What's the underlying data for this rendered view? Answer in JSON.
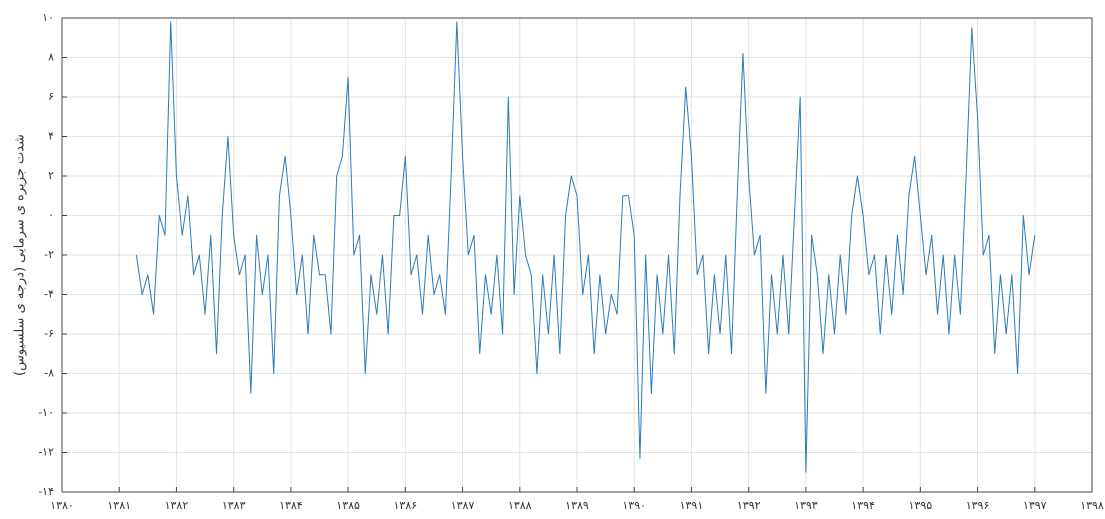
{
  "chart_data": {
    "type": "line",
    "y_label": "شدت جزیره ی سرمایی (درجه ی سلسیوس)",
    "color": "#2b7bba",
    "grid": true,
    "xlim": [
      1380,
      1398
    ],
    "ylim": [
      -14,
      10
    ],
    "xticks": [
      {
        "value": 1380,
        "label": "۱۳۸۰"
      },
      {
        "value": 1381,
        "label": "۱۳۸۱"
      },
      {
        "value": 1382,
        "label": "۱۳۸۲"
      },
      {
        "value": 1383,
        "label": "۱۳۸۳"
      },
      {
        "value": 1384,
        "label": "۱۳۸۴"
      },
      {
        "value": 1385,
        "label": "۱۳۸۵"
      },
      {
        "value": 1386,
        "label": "۱۳۸۶"
      },
      {
        "value": 1387,
        "label": "۱۳۸۷"
      },
      {
        "value": 1388,
        "label": "۱۳۸۸"
      },
      {
        "value": 1389,
        "label": "۱۳۸۹"
      },
      {
        "value": 1390,
        "label": "۱۳۹۰"
      },
      {
        "value": 1391,
        "label": "۱۳۹۱"
      },
      {
        "value": 1392,
        "label": "۱۳۹۲"
      },
      {
        "value": 1393,
        "label": "۱۳۹۳"
      },
      {
        "value": 1394,
        "label": "۱۳۹۴"
      },
      {
        "value": 1395,
        "label": "۱۳۹۵"
      },
      {
        "value": 1396,
        "label": "۱۳۹۶"
      },
      {
        "value": 1397,
        "label": "۱۳۹۷"
      },
      {
        "value": 1398,
        "label": "۱۳۹۸"
      }
    ],
    "yticks": [
      {
        "value": 10,
        "label": "۱۰"
      },
      {
        "value": 8,
        "label": "۸"
      },
      {
        "value": 6,
        "label": "۶"
      },
      {
        "value": 4,
        "label": "۴"
      },
      {
        "value": 2,
        "label": "۲"
      },
      {
        "value": 0,
        "label": "۰"
      },
      {
        "value": -2,
        "label": "-۲"
      },
      {
        "value": -4,
        "label": "-۴"
      },
      {
        "value": -6,
        "label": "-۶"
      },
      {
        "value": -8,
        "label": "-۸"
      },
      {
        "value": -10,
        "label": "-۱۰"
      },
      {
        "value": -12,
        "label": "-۱۲"
      },
      {
        "value": -14,
        "label": "-۱۴"
      }
    ],
    "x": [
      1381.3,
      1381.4,
      1381.5,
      1381.6,
      1381.7,
      1381.8,
      1381.9,
      1382,
      1382.1,
      1382.2,
      1382.3,
      1382.4,
      1382.5,
      1382.6,
      1382.7,
      1382.8,
      1382.9,
      1383,
      1383.1,
      1383.2,
      1383.3,
      1383.4,
      1383.5,
      1383.6,
      1383.7,
      1383.8,
      1383.9,
      1384,
      1384.1,
      1384.2,
      1384.3,
      1384.4,
      1384.5,
      1384.6,
      1384.7,
      1384.8,
      1384.9,
      1385,
      1385.1,
      1385.2,
      1385.3,
      1385.4,
      1385.5,
      1385.6,
      1385.7,
      1385.8,
      1385.9,
      1386,
      1386.1,
      1386.2,
      1386.3,
      1386.4,
      1386.5,
      1386.6,
      1386.7,
      1386.8,
      1386.9,
      1387,
      1387.1,
      1387.2,
      1387.3,
      1387.4,
      1387.5,
      1387.6,
      1387.7,
      1387.8,
      1387.9,
      1388,
      1388.1,
      1388.2,
      1388.3,
      1388.4,
      1388.5,
      1388.6,
      1388.7,
      1388.8,
      1388.9,
      1389,
      1389.1,
      1389.2,
      1389.3,
      1389.4,
      1389.5,
      1389.6,
      1389.7,
      1389.8,
      1389.9,
      1390,
      1390.1,
      1390.2,
      1390.3,
      1390.4,
      1390.5,
      1390.6,
      1390.7,
      1390.8,
      1390.9,
      1391,
      1391.1,
      1391.2,
      1391.3,
      1391.4,
      1391.5,
      1391.6,
      1391.7,
      1391.8,
      1391.9,
      1392,
      1392.1,
      1392.2,
      1392.3,
      1392.4,
      1392.5,
      1392.6,
      1392.7,
      1392.8,
      1392.9,
      1393,
      1393.1,
      1393.2,
      1393.3,
      1393.4,
      1393.5,
      1393.6,
      1393.7,
      1393.8,
      1393.9,
      1394,
      1394.1,
      1394.2,
      1394.3,
      1394.4,
      1394.5,
      1394.6,
      1394.7,
      1394.8,
      1394.9,
      1395,
      1395.1,
      1395.2,
      1395.3,
      1395.4,
      1395.5,
      1395.6,
      1395.7,
      1395.8,
      1395.9,
      1396,
      1396.1,
      1396.2,
      1396.3,
      1396.4,
      1396.5,
      1396.6,
      1396.7,
      1396.8,
      1396.9,
      1397
    ],
    "values": [
      -2,
      -4,
      -3,
      -5,
      0,
      -1,
      9.8,
      2,
      -1,
      1,
      -3,
      -2,
      -5,
      -1,
      -7,
      0,
      4,
      -1,
      -3,
      -2,
      -9,
      -1,
      -4,
      -2,
      -8,
      1,
      3,
      0,
      -4,
      -2,
      -6,
      -1,
      -3,
      -3,
      -6,
      2,
      3,
      7,
      -2,
      -1,
      -8,
      -3,
      -5,
      -2,
      -6,
      0,
      0,
      3,
      -3,
      -2,
      -5,
      -1,
      -4,
      -3,
      -5,
      2,
      9.8,
      3,
      -2,
      -1,
      -7,
      -3,
      -5,
      -2,
      -6,
      6,
      -4,
      1,
      -2,
      -3,
      -8,
      -3,
      -6,
      -2,
      -7,
      0,
      2,
      1,
      -4,
      -2,
      -7,
      -3,
      -6,
      -4,
      -5,
      1,
      1,
      -1,
      -12.3,
      -2,
      -9,
      -3,
      -6,
      -2,
      -7,
      1,
      6.5,
      3,
      -3,
      -2,
      -7,
      -3,
      -6,
      -2,
      -7,
      1,
      8.2,
      2,
      -2,
      -1,
      -9,
      -3,
      -6,
      -2,
      -6,
      0,
      6,
      -13,
      -1,
      -3,
      -7,
      -3,
      -6,
      -2,
      -5,
      0,
      2,
      0,
      -3,
      -2,
      -6,
      -2,
      -5,
      -1,
      -4,
      1,
      3,
      0,
      -3,
      -1,
      -5,
      -2,
      -6,
      -2,
      -5,
      2,
      9.5,
      5,
      -2,
      -1,
      -7,
      -3,
      -6,
      -3,
      -8,
      0,
      -3,
      -1
    ]
  }
}
